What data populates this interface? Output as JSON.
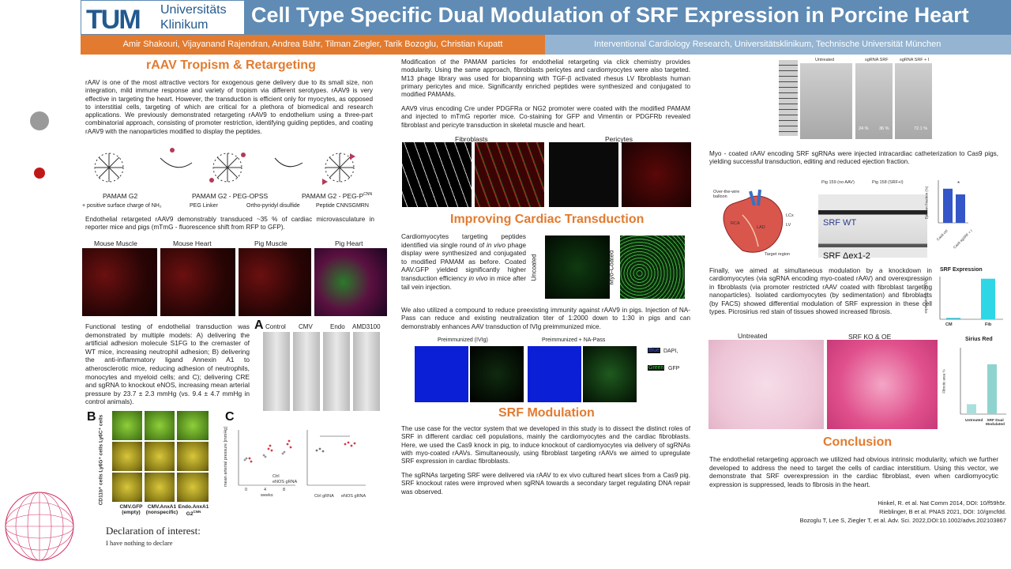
{
  "header": {
    "logo_text": "TUM",
    "uni_line1": "Universitäts",
    "uni_line2": "Klinikum",
    "title": "Cell Type Specific Dual Modulation of SRF Expression in Porcine Heart",
    "authors": "Amir Shakouri, Vijayanand Rajendran, Andrea Bähr, Tilman Ziegler, Tarik Bozoglu, Christian Kupatt",
    "affiliation": "Interventional Cardiology Research, Universitätsklinikum, Technische Universität München"
  },
  "col1": {
    "heading": "rAAV Tropism & Retargeting",
    "intro": "rAAV is one of the most attractive vectors for exogenous gene delivery due to its small size, non integration, mild immune response and variety of tropism via different serotypes. rAAV9 is very effective in targeting the heart. However, the transduction is efficient only for myocytes, as opposed to interstitial cells, targeting of which are critical for a plethora of biomedical and research applications. We previously demonstrated retargeting rAAV9 to endothelium using a three-part combinatorial approach, consisting of promoter restriction, identifying guiding peptides, and coating rAAV9 with the nanoparticles modified to display the peptides.",
    "pamam_labels": [
      "PAMAM G2",
      "PAMAM G2 - PEG-OPSS",
      "PAMAM G2 - PEG-P"
    ],
    "pamam_sup": "CNN",
    "legend": [
      "+ positive surface charge of NH₂",
      "PEG Linker",
      "Ortho-pyridyl disulfide",
      "Peptide CNNSGMRN"
    ],
    "endo_text": "Endothelial retargeted rAAV9 demonstrably transduced ~35 % of cardiac microvasculature in reporter mice and pigs (mTmG - fluorescence shift from RFP to GFP).",
    "tissue_labels": [
      "Mouse Muscle",
      "Mouse Heart",
      "Pig Muscle",
      "Pig Heart"
    ],
    "functional_text": "Functional testing of endothelial transduction was demonstrated by multiple models: A) delivering the artificial adhesion molecule S1FG to the cremaster of WT mice, increasing neutrophil adhesion; B) delivering the anti-inflammatory ligand Annexin A1 to atherosclerotic mice, reducing adhesion of neutrophils, monocytes and myeloid cells; and C); delivering CRE and sgRNA to knockout eNOS, increasing mean arterial pressure by 23.7 ± 2.3 mmHg (vs. 9.4 ± 4.7 mmHg in control animals).",
    "panel_a_letter": "A",
    "panel_a_labels": [
      "Control",
      "CMV",
      "Endo",
      "AMD3100"
    ],
    "panel_b_letter": "B",
    "panel_b_ylabel": "CD11b⁺ cells Ly6G⁺ cells Ly6C⁺ cells",
    "panel_b_labels": [
      "CMV.GFP (empty)",
      "CMV.AnxA1 (nonspecific)",
      "Endo.AnxA1 G2"
    ],
    "panel_b_sup": "CNN",
    "panel_c_letter": "C",
    "panel_c_legend": [
      "Ctrl",
      "eNOS gRNA"
    ],
    "panel_c_xlabels": [
      "0",
      "4",
      "8"
    ],
    "panel_c_xlabel": "weeks",
    "panel_c2_xlabels": [
      "Ctrl gRNA",
      "eNOS gRNA"
    ],
    "panel_c_ylabel": "mean arterial pressure [mmHg]",
    "decl_heading": "Declaration of interest:",
    "decl_text": "I have nothing to declare"
  },
  "col2": {
    "intro": "Modification of the PAMAM particles for endothelial retargeting via click chemistry provides modularity. Using the same approach, fibroblasts pericytes and cardiomyocytes were also targeted. M13 phage library was used for biopanning with TGF-β activated rhesus LV fibroblasts human primary pericytes and mice. Significantly enriched peptides were synthesized and conjugated to modified PAMAMs.",
    "aav_text": "AAV9 virus encoding Cre under PDGFRa or NG2 promoter were coated with the modified PAMAM and injected to mTmG reporter mice. Co-staining for GFP and Vimentin or PDGFRb revealed fibroblast and pericyte transduction in skeletal muscle and heart.",
    "img_labels": [
      "Fibroblasts",
      "Pericytes"
    ],
    "heading_transduction": "Improving Cardiac Transduction",
    "cardio_text_a": "Cardiomyocytes targeting peptides identified via single round of",
    "cardio_italic_a": "in vivo",
    "cardio_text_b": "phage display were synthesized and conjugated to modified PAMAM as before. Coated AAV.GFP yielded significantly higher transduction efficiency",
    "cardio_italic_b": "in vivo",
    "cardio_text_c": "in mice after tail vein injection.",
    "uncoated": "Uncoated",
    "myo_coated": "Myo-Coated",
    "immunity_text": "We also utilized a compound to reduce preexisting immunity against rAAV9 in pigs. Injection of NA-Pass can reduce and existing neutralization titer of 1:2000 down to 1:30 in pigs and can demonstrably enhances AAV transduction of IVIg  preimmunized mice.",
    "preimm_labels": [
      "Preimmunized (IVIg)",
      "Preimmunized + NA-Pass"
    ],
    "legend_dapi": "DAPI,",
    "legend_blue_word": "Blue",
    "legend_green_word": "Green",
    "legend_gfp": "GFP",
    "heading_srf": "SRF Modulation",
    "srf_text1": "The use case for the vector system that we developed in this study is to dissect the distinct roles of SRF in different cardiac cell populations, mainly the cardiomyocytes and the cardiac fibroblasts. Here, we used the Cas9 knock in pig, to induce knockout of cardiomyocytes via delivery of sgRNAs with myo-coated rAAVs. Simultaneously, using fibroblast targeting rAAVs we aimed to upregulate SRF expression in cardiac fibroblasts.",
    "srf_text2": "The sgRNAs targeting SRF were delivered via rAAV to ex vivo cultured heart slices from a Cas9 pig. SRF knockout rates were improved when sgRNA towards a secondary target regulating DNA repair was observed."
  },
  "col3": {
    "gel_labels": [
      "Untreated",
      "sgRNA SRF",
      "sgRNA SRF + I"
    ],
    "gel_pcts": [
      "24 %",
      "36 %",
      "72.1 %"
    ],
    "myo_text": "Myo - coated rAAV encoding SRF sgRNAs were injected intracardiac catheterization to Cas9 pigs, yielding successful transduction, editing and reduced ejection fraction.",
    "pig_labels": [
      "Pig 159 (no AAV)",
      "Pig 158 (SRF+I)"
    ],
    "srf_wt": "SRF WT",
    "srf_dex": "SRF Δex1-2",
    "heart_labels": [
      "Over-the-wire balloon",
      "RCA",
      "LAD",
      "LCx",
      "LV",
      "Target region"
    ],
    "ef_ylabel": "Ejection Fraction (%)",
    "ef_xlabels": [
      "Cas9 ctrl",
      "Cas9 sgSRF + I"
    ],
    "star": "*",
    "finally_text": "Finally, we aimed at simultaneous modulation by a knockdown in cardiomyocytes (via sgRNA encoding myo-coated rAAV) and overexpression in fibroblasts (via promoter restricted rAAV coated with fibroblast targeting nanoparticles). Isolated cardiomyocytes (by sedimentation) and fibroblasts (by FACS) showed differential modulation of SRF expression in these cell types. Picrosirius red stain of tissues showed increased fibrosis.",
    "srf_expr_title": "SRF Expression",
    "srf_expr_ylabel": "expression to GAPDH",
    "srf_expr_labels": [
      "CM",
      "Fib"
    ],
    "tissue_labels": [
      "Untreated",
      "SRF KO & OE"
    ],
    "sirius_title": "Sirius Red",
    "sirius_ylabel": "Fibrotic area %",
    "sirius_labels": [
      "Untreated",
      "SRF Dual Modulated"
    ],
    "heading_conclusion": "Conclusion",
    "conclusion": "The endothelial retargeting approach we utilized had obvious intrinsic modularity, which we further developed to address the need to target the cells of cardiac interstitium. Using this vector, we demonstrate that SRF overexpression in the cardiac fibroblast, even when cardiomyocytic expression is suppressed, leads to fibrosis in the heart.",
    "refs": [
      "Hinkel, R. et al. Nat Comm 2014, DOI: 10/f59h5r.",
      "Rieblinger, B et al. PNAS 2021, DOI: 10/gmcfdd.",
      "Bozoglu T, Lee S, Ziegler T, et al. Adv. Sci. 2022,DOI:10.1002/advs.202103867"
    ]
  },
  "chart_data": [
    {
      "type": "bar",
      "title": "SRF Expression",
      "ylabel": "expression to GAPDH",
      "categories": [
        "CM",
        "Fib"
      ],
      "values": [
        0.3,
        9.5
      ],
      "ylim": [
        0,
        10
      ]
    },
    {
      "type": "bar",
      "title": "Sirius Red",
      "ylabel": "Fibrotic area %",
      "categories": [
        "Untreated",
        "SRF Dual Modulated"
      ],
      "values": [
        1.2,
        6.0
      ],
      "ylim": [
        0,
        8
      ]
    },
    {
      "type": "bar",
      "ylabel": "Ejection Fraction (%)",
      "categories": [
        "Cas9 ctrl",
        "Cas9 sgSRF + I"
      ],
      "values": [
        48,
        40
      ],
      "ylim": [
        0,
        60
      ]
    }
  ],
  "colors": {
    "header_blue": "#5f8bb4",
    "accent_orange": "#e27b2f",
    "affil_blue": "#94b4d2"
  }
}
